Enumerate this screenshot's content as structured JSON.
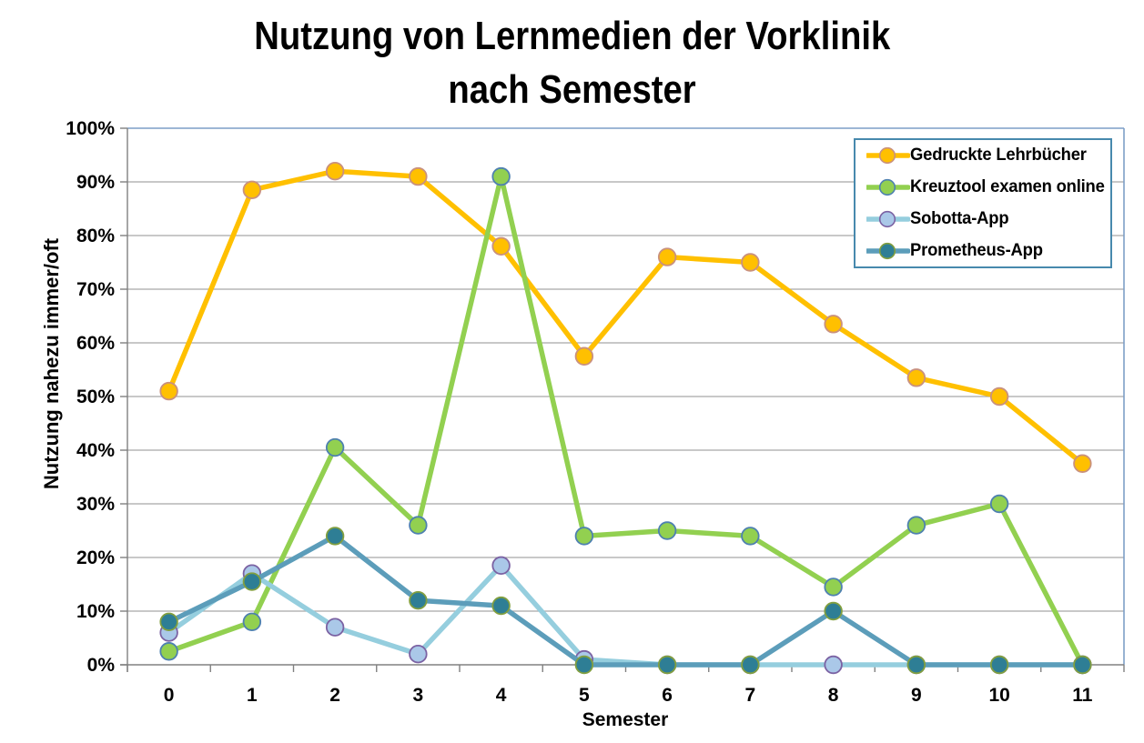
{
  "title": {
    "line1": "Nutzung von Lernmedien der Vorklinik",
    "line2": "nach Semester"
  },
  "axes": {
    "y_label": "Nutzung nahezu immer/oft",
    "x_label": "Semester",
    "y_ticks": [
      "0%",
      "10%",
      "20%",
      "30%",
      "40%",
      "50%",
      "60%",
      "70%",
      "80%",
      "90%",
      "100%"
    ],
    "x_ticks": [
      "0",
      "1",
      "2",
      "3",
      "4",
      "5",
      "6",
      "7",
      "8",
      "9",
      "10",
      "11"
    ]
  },
  "colors": {
    "gridline": "#A6A6A6",
    "axis_line": "#808080",
    "plot_border": "#7D9EC7",
    "legend_border": "#4789AD",
    "background": "#FFFFFF"
  },
  "chart_data": {
    "type": "line",
    "title": "Nutzung von Lernmedien der Vorklinik nach Semester",
    "xlabel": "Semester",
    "ylabel": "Nutzung nahezu immer/oft",
    "x": [
      0,
      1,
      2,
      3,
      4,
      5,
      6,
      7,
      8,
      9,
      10,
      11
    ],
    "ylim": [
      0,
      100
    ],
    "y_tick_step": 10,
    "grid": true,
    "legend_position": "top-right",
    "series": [
      {
        "name": "Gedruckte Lehrbücher",
        "line_color": "#FFC000",
        "marker_fill": "#FFC000",
        "marker_stroke": "#C9917E",
        "values": [
          51,
          88.5,
          92,
          91,
          78,
          57.5,
          76,
          75,
          63.5,
          53.5,
          50,
          37.5
        ]
      },
      {
        "name": "Kreuztool examen online",
        "line_color": "#92D050",
        "marker_fill": "#92D050",
        "marker_stroke": "#4E80B0",
        "values": [
          2.5,
          8,
          40.5,
          26,
          91,
          24,
          25,
          24,
          14.5,
          26,
          30,
          0
        ]
      },
      {
        "name": "Sobotta-App",
        "line_color": "#95CEDE",
        "marker_fill": "#AAC8E8",
        "marker_stroke": "#7B62A3",
        "values": [
          6,
          17,
          7,
          2,
          18.5,
          1,
          0,
          0,
          0,
          0,
          0,
          0
        ]
      },
      {
        "name": "Prometheus-App",
        "line_color": "#5C9DBA",
        "marker_fill": "#2E7E95",
        "marker_stroke": "#829F3F",
        "values": [
          8,
          15.5,
          24,
          12,
          11,
          0,
          0,
          0,
          10,
          0,
          0,
          0
        ]
      }
    ]
  }
}
